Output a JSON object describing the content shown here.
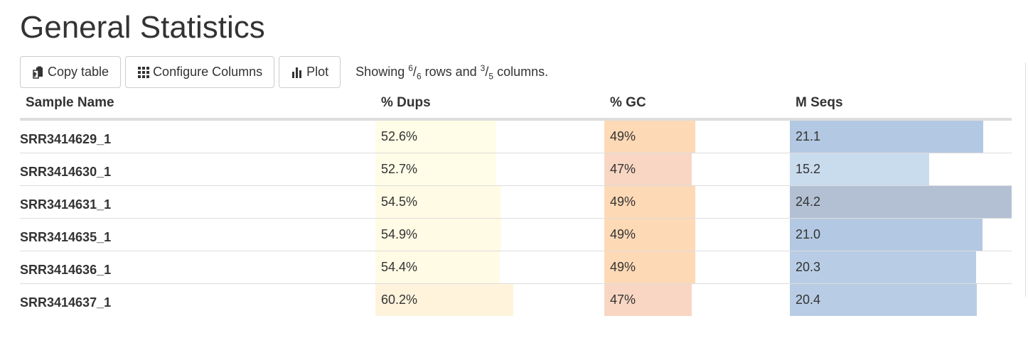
{
  "title": "General Statistics",
  "toolbar": {
    "copy_label": "Copy table",
    "configure_label": "Configure Columns",
    "plot_label": "Plot",
    "showing": {
      "prefix": "Showing ",
      "rows_shown": "6",
      "rows_total": "6",
      "mid": " rows and ",
      "cols_shown": "3",
      "cols_total": "5",
      "suffix": " columns."
    }
  },
  "table": {
    "headers": [
      "Sample Name",
      "% Dups",
      "% GC",
      "M Seqs"
    ],
    "rows": [
      {
        "sample": "SRR3414629_1",
        "dups": "52.6%",
        "gc": "49%",
        "mseqs": "21.1",
        "dups_frac": 0.526,
        "gc_frac": 0.49,
        "mseqs_frac": 0.872,
        "dups_color": "#fffde7",
        "gc_color": "#fdd9b5",
        "mseqs_color": "#b3c8e2"
      },
      {
        "sample": "SRR3414630_1",
        "dups": "52.7%",
        "gc": "47%",
        "mseqs": "15.2",
        "dups_frac": 0.527,
        "gc_frac": 0.47,
        "mseqs_frac": 0.628,
        "dups_color": "#fffde7",
        "gc_color": "#f8d6c3",
        "mseqs_color": "#c9dcee"
      },
      {
        "sample": "SRR3414631_1",
        "dups": "54.5%",
        "gc": "49%",
        "mseqs": "24.2",
        "dups_frac": 0.545,
        "gc_frac": 0.49,
        "mseqs_frac": 1.0,
        "dups_color": "#fffbe5",
        "gc_color": "#fdd9b5",
        "mseqs_color": "#b3c0d4"
      },
      {
        "sample": "SRR3414635_1",
        "dups": "54.9%",
        "gc": "49%",
        "mseqs": "21.0",
        "dups_frac": 0.549,
        "gc_frac": 0.49,
        "mseqs_frac": 0.868,
        "dups_color": "#fffbe5",
        "gc_color": "#fdd9b5",
        "mseqs_color": "#b3c8e2"
      },
      {
        "sample": "SRR3414636_1",
        "dups": "54.4%",
        "gc": "49%",
        "mseqs": "20.3",
        "dups_frac": 0.544,
        "gc_frac": 0.49,
        "mseqs_frac": 0.839,
        "dups_color": "#fffbe5",
        "gc_color": "#fdd9b5",
        "mseqs_color": "#b8cde5"
      },
      {
        "sample": "SRR3414637_1",
        "dups": "60.2%",
        "gc": "47%",
        "mseqs": "20.4",
        "dups_frac": 0.602,
        "gc_frac": 0.47,
        "mseqs_frac": 0.843,
        "dups_color": "#fff3dc",
        "gc_color": "#f8d6c3",
        "mseqs_color": "#b8cde5"
      }
    ]
  },
  "icons": {
    "copy": "clipboard-icon",
    "configure": "grid-icon",
    "plot": "bar-chart-icon"
  }
}
